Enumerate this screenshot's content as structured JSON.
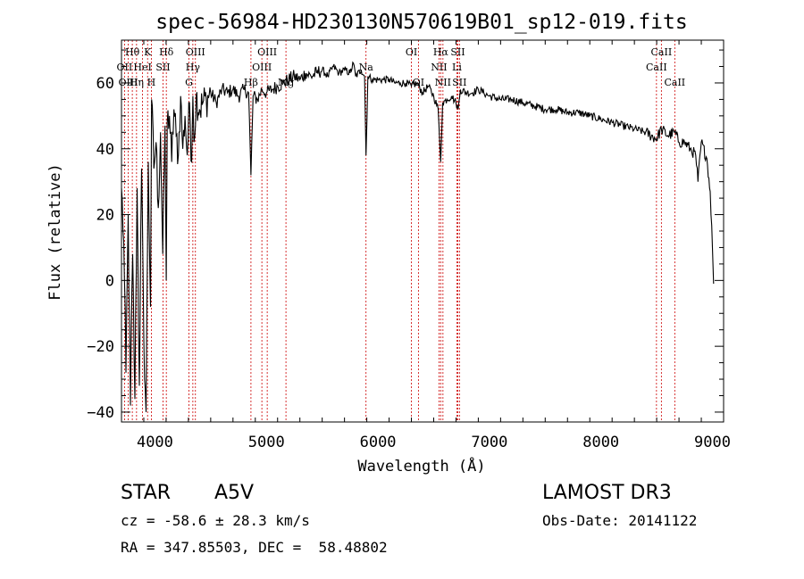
{
  "chart_data": {
    "type": "line",
    "title": "spec-56984-HD230130N570619B01_sp12-019.fits",
    "xlabel": "Wavelength (Å)",
    "ylabel": "Flux (relative)",
    "xlim": [
      3700,
      9100
    ],
    "ylim": [
      -43,
      73
    ],
    "xticks": [
      4000,
      5000,
      6000,
      7000,
      8000,
      9000
    ],
    "yticks": [
      -40,
      -20,
      0,
      20,
      40,
      60
    ],
    "xtick_labels": [
      "4000",
      "5000",
      "6000",
      "7000",
      "8000",
      "9000"
    ],
    "ytick_labels": [
      "-40",
      "-20",
      "0",
      "20",
      "40",
      "60"
    ],
    "grid": false,
    "series": [
      {
        "name": "flux",
        "x": [
          3700,
          3720,
          3740,
          3760,
          3780,
          3800,
          3820,
          3840,
          3860,
          3880,
          3900,
          3920,
          3940,
          3960,
          3970,
          3990,
          4010,
          4030,
          4050,
          4070,
          4090,
          4101,
          4110,
          4130,
          4150,
          4170,
          4190,
          4210,
          4230,
          4250,
          4270,
          4290,
          4310,
          4330,
          4340,
          4350,
          4370,
          4400,
          4430,
          4460,
          4500,
          4550,
          4600,
          4650,
          4700,
          4750,
          4800,
          4840,
          4861,
          4880,
          4920,
          4960,
          5000,
          5050,
          5100,
          5150,
          5200,
          5250,
          5300,
          5350,
          5400,
          5450,
          5500,
          5550,
          5600,
          5650,
          5700,
          5750,
          5780,
          5800,
          5850,
          5880,
          5893,
          5910,
          5950,
          6000,
          6050,
          6100,
          6150,
          6200,
          6250,
          6300,
          6350,
          6400,
          6450,
          6500,
          6540,
          6563,
          6580,
          6620,
          6660,
          6700,
          6720,
          6740,
          6800,
          6850,
          6900,
          6950,
          7000,
          7100,
          7200,
          7300,
          7400,
          7500,
          7600,
          7700,
          7800,
          7900,
          8000,
          8100,
          8200,
          8300,
          8400,
          8498,
          8542,
          8600,
          8662,
          8700,
          8750,
          8800,
          8850,
          8870,
          8900,
          8950,
          8980,
          9000,
          9010
        ],
        "values": [
          28,
          12,
          -28,
          20,
          -38,
          8,
          -36,
          28,
          -32,
          34,
          -18,
          -40,
          36,
          -8,
          55,
          34,
          42,
          22,
          45,
          8,
          47,
          0,
          48,
          50,
          36,
          52,
          44,
          38,
          56,
          40,
          50,
          38,
          54,
          36,
          56,
          42,
          56,
          52,
          54,
          55,
          57,
          54,
          58,
          57,
          58,
          56,
          58,
          57,
          32,
          56,
          55,
          58,
          57,
          58,
          59,
          60,
          61,
          62,
          61,
          63,
          62,
          63,
          64,
          62,
          65,
          63,
          64,
          63,
          66,
          62,
          64,
          62,
          38,
          62,
          61,
          61,
          61,
          61,
          60,
          60,
          60,
          59,
          60,
          57,
          59,
          56,
          52,
          36,
          54,
          55,
          56,
          54,
          52,
          58,
          57,
          57,
          58,
          57,
          56,
          55,
          55,
          54,
          53,
          52,
          52,
          51,
          51,
          50,
          49,
          48,
          47,
          46,
          45,
          43,
          46,
          44,
          45,
          42,
          42,
          40,
          38,
          30,
          42,
          37,
          27,
          10,
          -1
        ]
      }
    ],
    "line_labels": [
      {
        "name": "Hθ",
        "wavelength": 3797,
        "row": 0
      },
      {
        "name": "OII",
        "wavelength": 3727,
        "row": 1
      },
      {
        "name": "OIII",
        "wavelength": 3760,
        "row": 2
      },
      {
        "name": "K",
        "wavelength": 3934,
        "row": 0
      },
      {
        "name": "HeI",
        "wavelength": 3889,
        "row": 1
      },
      {
        "name": "Hη",
        "wavelength": 3835,
        "row": 2
      },
      {
        "name": "Hδ",
        "wavelength": 4102,
        "row": 0
      },
      {
        "name": "SII",
        "wavelength": 4072,
        "row": 1
      },
      {
        "name": "H",
        "wavelength": 3968,
        "row": 2
      },
      {
        "name": "OIII",
        "wavelength": 4363,
        "row": 0
      },
      {
        "name": "Hγ",
        "wavelength": 4340,
        "row": 1
      },
      {
        "name": "G",
        "wavelength": 4305,
        "row": 2
      },
      {
        "name": "OIII",
        "wavelength": 5007,
        "row": 0
      },
      {
        "name": "OIII",
        "wavelength": 4959,
        "row": 1
      },
      {
        "name": "Hβ",
        "wavelength": 4861,
        "row": 2
      },
      {
        "name": "Mg",
        "wavelength": 5175,
        "row": 2
      },
      {
        "name": "Na",
        "wavelength": 5893,
        "row": 1
      },
      {
        "name": "OI",
        "wavelength": 6300,
        "row": 0
      },
      {
        "name": "OI",
        "wavelength": 6363,
        "row": 2
      },
      {
        "name": "Hα",
        "wavelength": 6563,
        "row": 0
      },
      {
        "name": "SII",
        "wavelength": 6716,
        "row": 0
      },
      {
        "name": "NII",
        "wavelength": 6548,
        "row": 1
      },
      {
        "name": "Li",
        "wavelength": 6708,
        "row": 1
      },
      {
        "name": "NII",
        "wavelength": 6583,
        "row": 2
      },
      {
        "name": "SII",
        "wavelength": 6731,
        "row": 2
      },
      {
        "name": "CaII",
        "wavelength": 8542,
        "row": 0
      },
      {
        "name": "CaII",
        "wavelength": 8498,
        "row": 1
      },
      {
        "name": "CaII",
        "wavelength": 8662,
        "row": 2
      }
    ]
  },
  "info": {
    "class_label": "STAR",
    "subclass": "A5V",
    "survey": "LAMOST DR3",
    "redshift_line": "cz = -58.6 ± 28.3 km/s",
    "obs_date_line": "Obs-Date: 20141122",
    "coords_line": "RA = 347.85503, DEC =  58.48802"
  },
  "colors": {
    "spectrum": "#000000",
    "marker_lines": "#cc0000",
    "axes": "#000000",
    "background": "#ffffff"
  }
}
